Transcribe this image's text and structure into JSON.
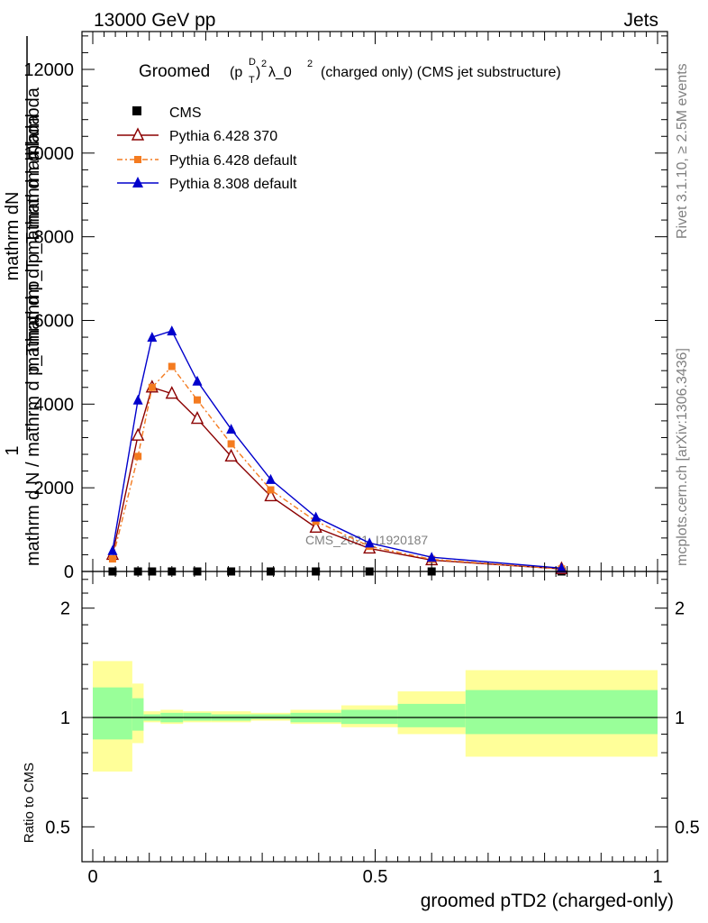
{
  "header": {
    "left": "13000 GeV pp",
    "right": "Jets"
  },
  "side": {
    "rivet": "Rivet 3.1.10, ≥ 2.5M events",
    "mcplots": "mcplots.cern.ch [arXiv:1306.3436]"
  },
  "plot_title": {
    "main": "Groomed",
    "formula": "(p_T^D)^2 λ_0^2",
    "rest": "(charged only) (CMS jet substructure)",
    "p": "(p",
    "T": "T",
    "D": "D",
    "close": ")",
    "sq": "2",
    "lam": "λ_0",
    "lamsq": "2"
  },
  "watermark": "CMS_2021_I1920187",
  "ylabel_main": {
    "one": "1",
    "top": "mathrm d N / mathrm d p_T",
    "top_a": "mathrm dN",
    "bottom": "mathrm d p_T mathrm d lambda",
    "over": "mathrm d N / mathrm d p_Tmathrm d p_T mathrm d lambda"
  },
  "ylabel_ratio": "Ratio to CMS",
  "xlabel": "groomed pTD2 (charged-only)",
  "colors": {
    "cms": "#000000",
    "p6_370": "#8b0000",
    "p6_default": "#f47b20",
    "p8": "#0000cc",
    "band_outer": "#ffff99",
    "band_inner": "#99ff99"
  },
  "chart_data": [
    {
      "type": "line",
      "panel": "main",
      "yticks": [
        "0",
        "2000",
        "4000",
        "6000",
        "8000",
        "10000",
        "12000"
      ],
      "ylim": [
        0,
        13000
      ],
      "xlim": [
        0,
        1
      ],
      "legend_position": "top-left",
      "bin_edges": [
        0.0,
        0.07,
        0.09,
        0.12,
        0.16,
        0.21,
        0.28,
        0.35,
        0.44,
        0.54,
        0.66,
        1.0
      ],
      "x": [
        0.035,
        0.08,
        0.105,
        0.14,
        0.185,
        0.245,
        0.315,
        0.395,
        0.49,
        0.6,
        0.83
      ],
      "series": [
        {
          "name": "CMS",
          "marker": "square",
          "color": "#000000",
          "values": [
            0,
            0,
            0,
            0,
            0,
            0,
            0,
            0,
            0,
            0,
            0
          ]
        },
        {
          "name": "Pythia 6.428 370",
          "marker": "open-triangle",
          "color": "#8b0000",
          "line": "solid",
          "values": [
            400,
            3250,
            4400,
            4250,
            3650,
            2750,
            1800,
            1050,
            550,
            270,
            60
          ]
        },
        {
          "name": "Pythia 6.428 default",
          "marker": "square",
          "color": "#f47b20",
          "line": "dashdot",
          "values": [
            300,
            2750,
            4400,
            4900,
            4100,
            3050,
            1950,
            1200,
            600,
            290,
            60
          ]
        },
        {
          "name": "Pythia 8.308 default",
          "marker": "triangle",
          "color": "#0000cc",
          "line": "solid",
          "values": [
            500,
            4100,
            5600,
            5750,
            4550,
            3400,
            2200,
            1300,
            680,
            340,
            80
          ]
        }
      ]
    },
    {
      "type": "area",
      "panel": "ratio",
      "yticks": [
        "0.5",
        "1",
        "2"
      ],
      "ylim": [
        0.42,
        2.45
      ],
      "scale": "log",
      "xticks": [
        "0",
        "0.5",
        "1"
      ],
      "xlim": [
        0,
        1
      ],
      "bin_edges": [
        0.0,
        0.07,
        0.09,
        0.12,
        0.16,
        0.21,
        0.28,
        0.35,
        0.44,
        0.54,
        0.66,
        1.0
      ],
      "outer_band": {
        "low": [
          0.71,
          0.85,
          0.97,
          0.96,
          0.97,
          0.97,
          0.98,
          0.96,
          0.94,
          0.9,
          0.78
        ],
        "high": [
          1.43,
          1.24,
          1.04,
          1.05,
          1.04,
          1.04,
          1.03,
          1.05,
          1.08,
          1.18,
          1.35
        ]
      },
      "inner_band": {
        "low": [
          0.87,
          0.92,
          0.98,
          0.97,
          0.98,
          0.98,
          0.99,
          0.97,
          0.96,
          0.94,
          0.9
        ],
        "high": [
          1.21,
          1.13,
          1.02,
          1.03,
          1.03,
          1.02,
          1.02,
          1.03,
          1.05,
          1.09,
          1.19
        ]
      }
    }
  ]
}
